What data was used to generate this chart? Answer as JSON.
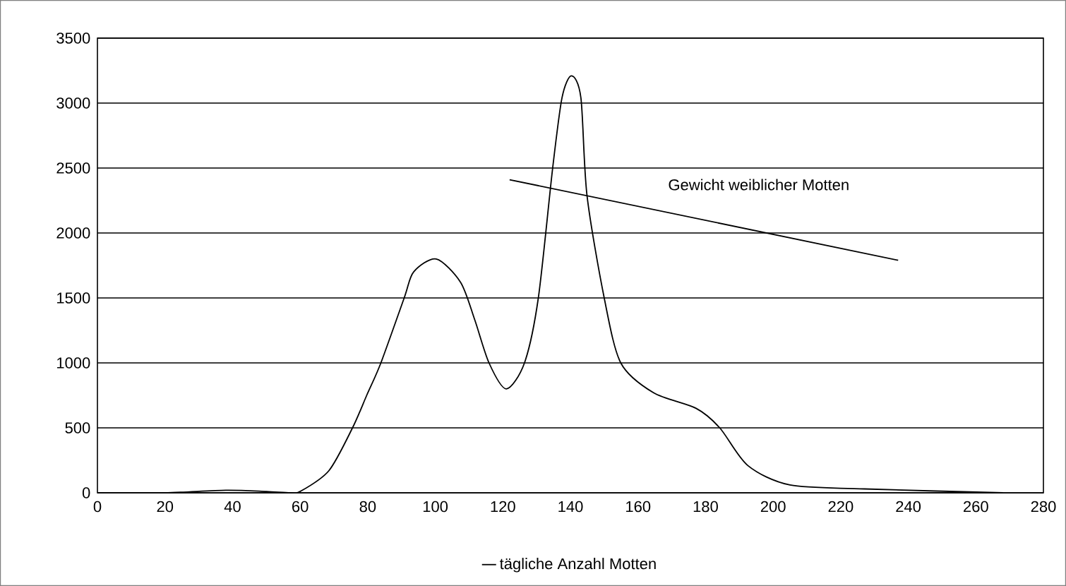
{
  "chart_data": {
    "type": "line",
    "x": [
      0,
      20,
      38,
      50,
      57,
      60,
      68.5,
      75.5,
      79.7,
      83.9,
      90.8,
      93.6,
      100.3,
      107.5,
      111.7,
      115.9,
      121,
      126.4,
      130.5,
      134.7,
      137.5,
      140.3,
      143.1,
      144.9,
      150,
      154.9,
      164.6,
      177.2,
      184.2,
      192.5,
      205,
      227,
      268
    ],
    "series": [
      {
        "name": "tägliche Anzahl Motten",
        "color": "#000000",
        "values": [
          0,
          0,
          20,
          10,
          0,
          10,
          170,
          500,
          750,
          1000,
          1500,
          1700,
          1800,
          1620,
          1330,
          1000,
          800,
          1000,
          1500,
          2490,
          3040,
          3210,
          3040,
          2290,
          1500,
          1000,
          770,
          650,
          500,
          210,
          60,
          30,
          0
        ]
      },
      {
        "name": "Gewicht weiblicher Motten",
        "color": "#000000",
        "x": [
          122,
          237
        ],
        "values": [
          2410,
          1790
        ]
      }
    ],
    "xlim": [
      0,
      280
    ],
    "xticks": [
      0,
      20,
      40,
      60,
      80,
      100,
      120,
      140,
      160,
      180,
      200,
      220,
      240,
      260,
      280
    ],
    "ylim": [
      0,
      3500
    ],
    "yticks": [
      0,
      500,
      1000,
      1500,
      2000,
      2500,
      3000,
      3500
    ],
    "grid": "y",
    "legend": "bottom",
    "marker": "none",
    "line_style": "solid"
  }
}
